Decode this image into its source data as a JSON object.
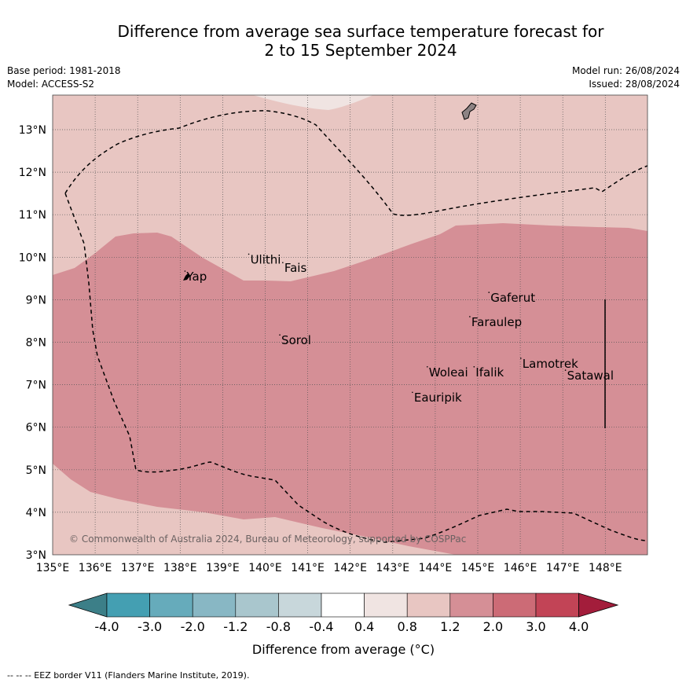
{
  "title": {
    "line1": "Difference from average sea surface temperature forecast for",
    "line2": "2 to 15 September 2024"
  },
  "meta": {
    "base_period": "Base period: 1981-2018",
    "model": "Model: ACCESS-S2",
    "model_run": "Model run: 26/08/2024",
    "issued": "Issued: 28/08/2024"
  },
  "copyright": "© Commonwealth of Australia 2024, Bureau of Meteorology, supported by COSPPac",
  "footer": "-- -- -- EEZ border V11 (Flanders Marine Institute, 2019).",
  "map": {
    "lon_ticks": [
      "135°E",
      "136°E",
      "137°E",
      "138°E",
      "139°E",
      "140°E",
      "141°E",
      "142°E",
      "143°E",
      "144°E",
      "145°E",
      "146°E",
      "147°E",
      "148°E"
    ],
    "lat_ticks": [
      "3°N",
      "4°N",
      "5°N",
      "6°N",
      "7°N",
      "8°N",
      "9°N",
      "10°N",
      "11°N",
      "12°N",
      "13°N"
    ],
    "places": [
      {
        "name": "Yap",
        "lon": 138.15,
        "lat": 9.45
      },
      {
        "name": "Ulithi",
        "lon": 139.65,
        "lat": 9.85
      },
      {
        "name": "Fais",
        "lon": 140.45,
        "lat": 9.65
      },
      {
        "name": "Gaferut",
        "lon": 145.3,
        "lat": 8.95
      },
      {
        "name": "Faraulep",
        "lon": 144.85,
        "lat": 8.38
      },
      {
        "name": "Sorol",
        "lon": 140.38,
        "lat": 7.95
      },
      {
        "name": "Lamotrek",
        "lon": 146.05,
        "lat": 7.4
      },
      {
        "name": "Woleai",
        "lon": 143.85,
        "lat": 7.2
      },
      {
        "name": "Ifalik",
        "lon": 144.95,
        "lat": 7.2
      },
      {
        "name": "Satawal",
        "lon": 147.1,
        "lat": 7.12
      },
      {
        "name": "Eauripik",
        "lon": 143.5,
        "lat": 6.6
      }
    ],
    "colors": {
      "band_0.8_1.2": "#e8c6c2",
      "band_1.2_2.0": "#d58f96",
      "band_0.4_0.8": "#f0e4e2"
    }
  },
  "colorbar": {
    "ticks": [
      "-4.0",
      "-3.0",
      "-2.0",
      "-1.2",
      "-0.8",
      "-0.4",
      "0.4",
      "0.8",
      "1.2",
      "2.0",
      "3.0",
      "4.0"
    ],
    "colors": [
      "#449fb2",
      "#66abbb",
      "#88b7c4",
      "#a9c6cd",
      "#c8d7db",
      "#ffffff",
      "#f0e4e2",
      "#e8c6c2",
      "#d58f96",
      "#cc6b76",
      "#c24456"
    ],
    "under_color": "#3c7f88",
    "over_color": "#a31d3b",
    "label": "Difference from average (°C)"
  }
}
